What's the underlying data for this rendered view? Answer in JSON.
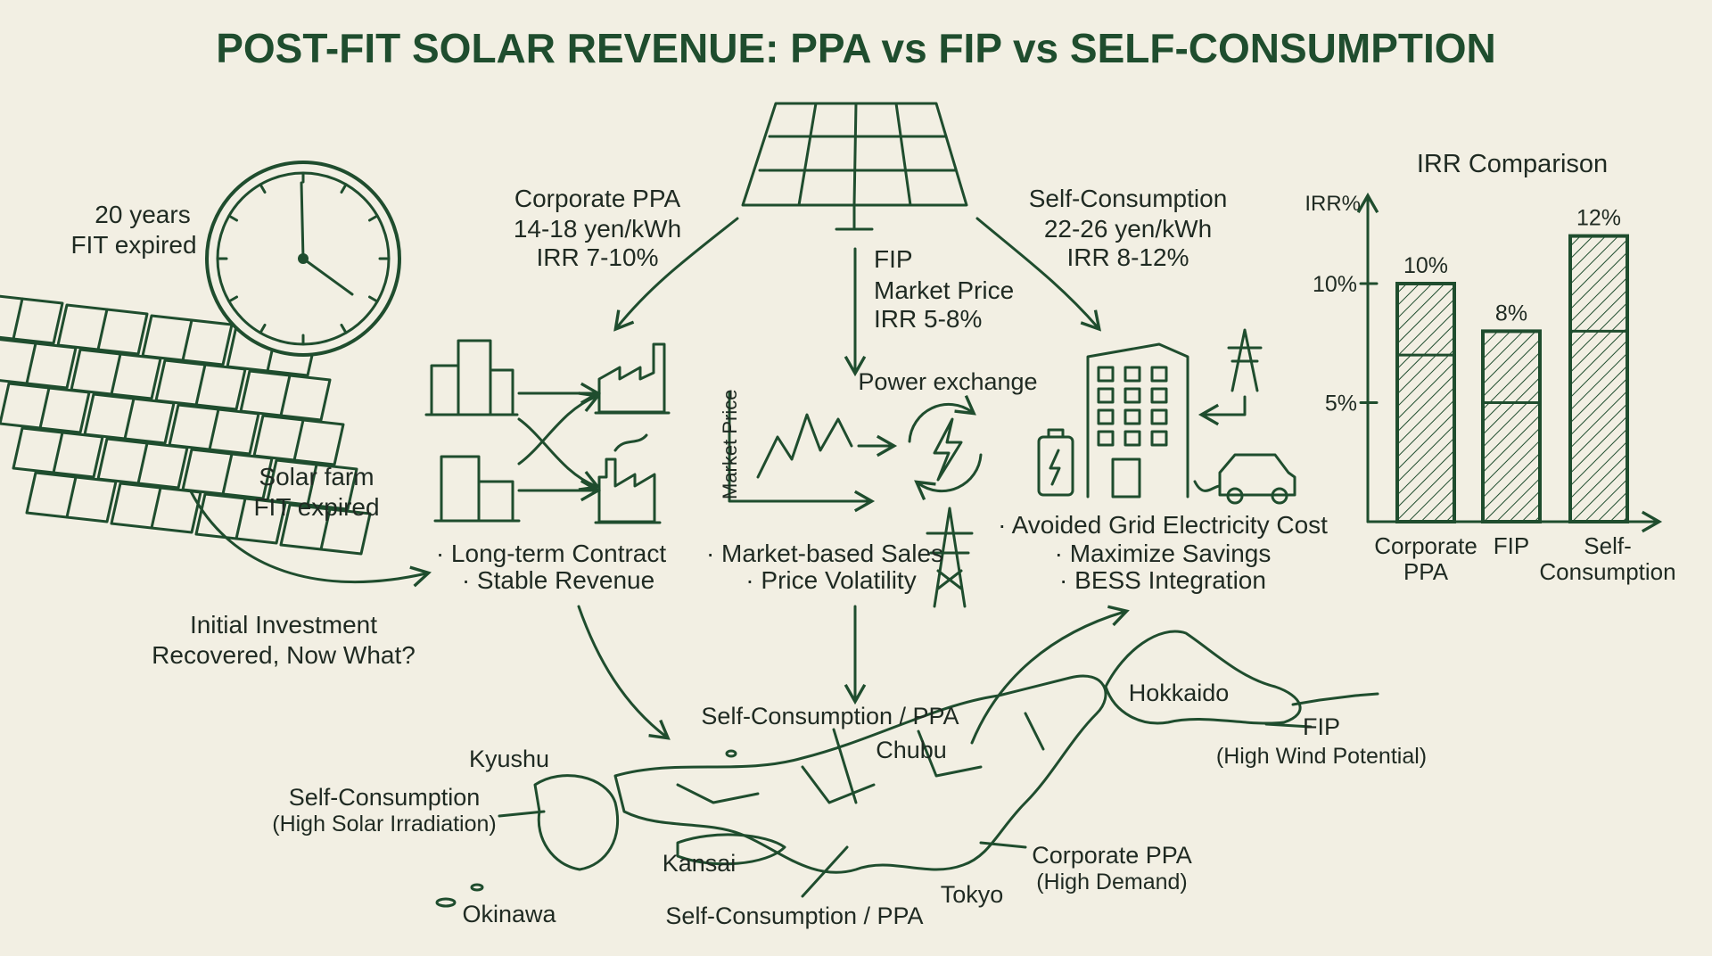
{
  "title": "POST-FIT SOLAR REVENUE: PPA vs FIP vs SELF-CONSUMPTION",
  "colors": {
    "background": "#f2efe3",
    "ink": "#1f4d2e",
    "text": "#1f2a22"
  },
  "left": {
    "clock_label": [
      "20 years",
      "FIT expired"
    ],
    "farm_label": [
      "Solar farm",
      "FIT expired"
    ],
    "question": [
      "Initial Investment",
      "Recovered, Now What?"
    ]
  },
  "options": {
    "ppa": {
      "lines": [
        "Corporate PPA",
        "14-18 yen/kWh",
        "IRR 7-10%"
      ],
      "bullets": [
        "· Long-term Contract",
        "· Stable Revenue"
      ]
    },
    "fip": {
      "lines": [
        "FIP",
        "Market Price",
        "IRR 5-8%"
      ],
      "axis_label": "Market Price",
      "exchange_label": "Power exchange",
      "bullets": [
        "· Market-based Sales",
        "· Price Volatility"
      ]
    },
    "self": {
      "lines": [
        "Self-Consumption",
        "22-26 yen/kWh",
        "IRR 8-12%"
      ],
      "bullets": [
        "· Avoided Grid Electricity Cost",
        "· Maximize Savings",
        "· BESS Integration"
      ]
    }
  },
  "map": {
    "labels": {
      "top_center": "Self-Consumption / PPA",
      "chubu": "Chubu",
      "hokkaido": "Hokkaido",
      "fip": "FIP",
      "fip_note": "(High Wind Potential)",
      "kyushu": "Kyushu",
      "self": "Self-Consumption",
      "self_note": "(High Solar Irradiation)",
      "kansai": "Kansai",
      "ppa": "Corporate PPA",
      "ppa_note": "(High Demand)",
      "tokyo": "Tokyo",
      "okinawa": "Okinawa",
      "bottom_center": "Self-Consumption / PPA"
    }
  },
  "chart_data": {
    "type": "bar",
    "title": "IRR Comparison",
    "ylabel": "IRR%",
    "xlabel": "",
    "categories": [
      [
        "Corporate",
        "PPA"
      ],
      [
        "FIP"
      ],
      [
        "Self-",
        "Consumption"
      ]
    ],
    "ranges": [
      [
        7,
        10
      ],
      [
        5,
        8
      ],
      [
        8,
        12
      ]
    ],
    "values": [
      10,
      8,
      12
    ],
    "data_labels": [
      "10%",
      "8%",
      "12%"
    ],
    "yticks": [
      {
        "value": 5,
        "label": "5%"
      },
      {
        "value": 10,
        "label": "10%"
      }
    ],
    "ylim": [
      0,
      13
    ],
    "grid": false,
    "fill": "hatched"
  }
}
